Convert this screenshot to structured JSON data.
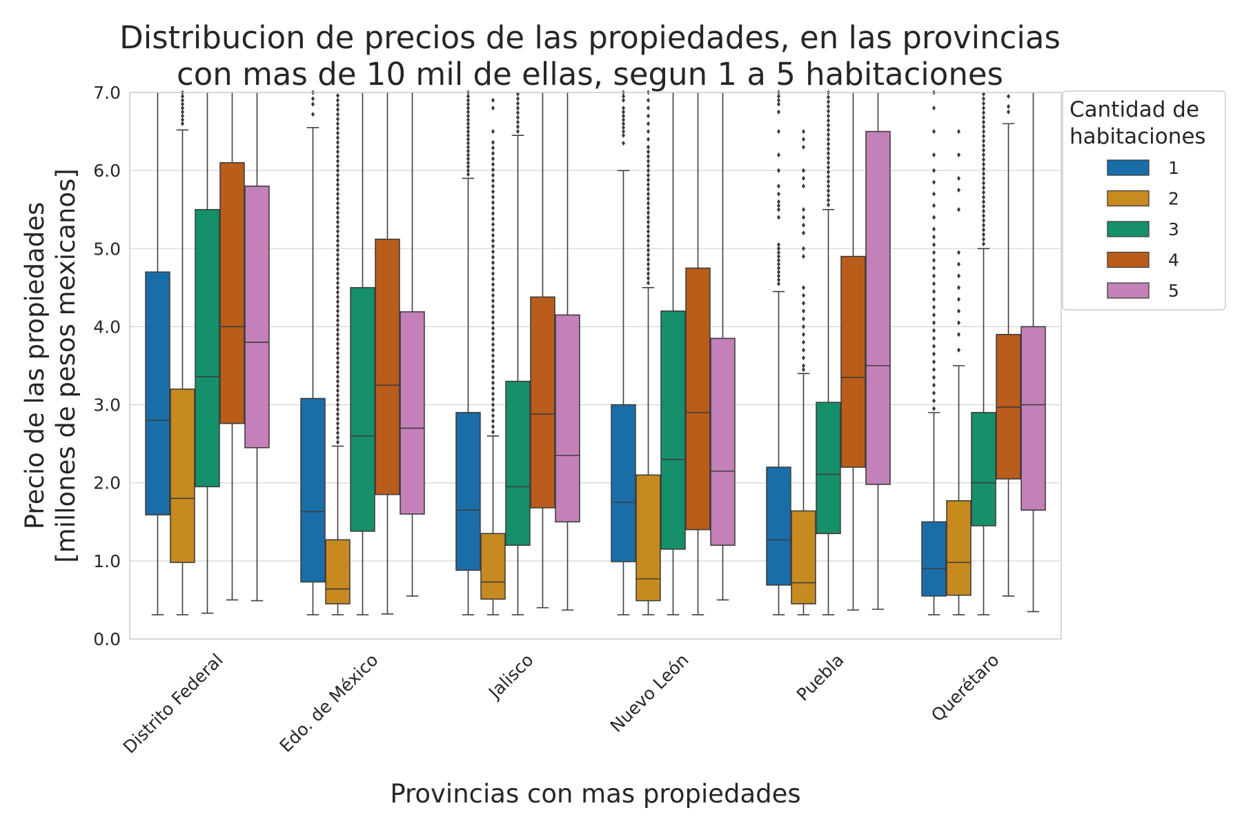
{
  "chart_data": {
    "type": "box",
    "title_lines": [
      "Distribucion de precios de las propiedades, en las provincias",
      "con mas de 10 mil de ellas, segun 1 a 5 habitaciones"
    ],
    "xlabel": "Provincias con mas propiedades",
    "ylabel_lines": [
      "Precio de las propiedades",
      "[millones de pesos mexicanos]"
    ],
    "ylim": [
      0,
      7
    ],
    "yticks": [
      "0.0",
      "1.0",
      "2.0",
      "3.0",
      "4.0",
      "5.0",
      "6.0",
      "7.0"
    ],
    "grid": true,
    "legend": {
      "title_lines": [
        "Cantidad de",
        "habitaciones"
      ],
      "position": "outside-top-right",
      "entries": [
        "1",
        "2",
        "3",
        "4",
        "5"
      ]
    },
    "categories": [
      "Distrito Federal",
      "Edo. de México",
      "Jalisco",
      "Nuevo León",
      "Puebla",
      "Querétaro"
    ],
    "series": [
      {
        "name": "1",
        "color": "#1a6ea8",
        "boxes": [
          {
            "whislo": 0.31,
            "q1": 1.59,
            "med": 2.8,
            "q3": 4.7,
            "whishi": 7.0,
            "fliers": []
          },
          {
            "whislo": 0.31,
            "q1": 0.73,
            "med": 1.63,
            "q3": 3.08,
            "whishi": 6.55,
            "fliers": [
              6.72,
              6.85,
              6.92,
              7.0
            ]
          },
          {
            "whislo": 0.31,
            "q1": 0.88,
            "med": 1.65,
            "q3": 2.9,
            "whishi": 5.9,
            "fliers": [
              5.95,
              6.0,
              6.05,
              6.1,
              6.15,
              6.2,
              6.25,
              6.3,
              6.35,
              6.4,
              6.45,
              6.5,
              6.55,
              6.6,
              6.65,
              6.7,
              6.75,
              6.8,
              6.85,
              6.9,
              6.95,
              7.0
            ]
          },
          {
            "whislo": 0.31,
            "q1": 0.99,
            "med": 1.75,
            "q3": 3.0,
            "whishi": 6.0,
            "fliers": [
              6.35,
              6.45,
              6.5,
              6.55,
              6.6,
              6.65,
              6.7,
              6.75,
              6.8,
              6.9,
              6.95,
              7.0
            ]
          },
          {
            "whislo": 0.31,
            "q1": 0.69,
            "med": 1.27,
            "q3": 2.2,
            "whishi": 4.45,
            "fliers": [
              4.55,
              4.6,
              4.65,
              4.7,
              4.75,
              4.8,
              4.85,
              4.9,
              4.95,
              5.0,
              5.05,
              5.4,
              5.5,
              5.55,
              5.6,
              5.7,
              5.8,
              6.0,
              6.2,
              6.5,
              6.75,
              6.85,
              6.9,
              6.95,
              7.0
            ]
          },
          {
            "whislo": 0.31,
            "q1": 0.55,
            "med": 0.9,
            "q3": 1.5,
            "whishi": 2.9,
            "fliers": [
              2.95,
              3.05,
              3.15,
              3.25,
              3.35,
              3.45,
              3.55,
              3.65,
              3.75,
              3.85,
              3.95,
              4.05,
              4.15,
              4.25,
              4.35,
              4.45,
              4.55,
              4.65,
              4.75,
              4.85,
              4.95,
              5.05,
              5.15,
              5.25,
              5.4,
              5.55,
              5.7,
              5.85,
              6.0,
              6.2,
              6.5,
              6.8,
              7.0
            ]
          }
        ]
      },
      {
        "name": "2",
        "color": "#c68a1f",
        "boxes": [
          {
            "whislo": 0.31,
            "q1": 0.98,
            "med": 1.8,
            "q3": 3.2,
            "whishi": 6.52,
            "fliers": [
              6.6,
              6.65,
              6.7,
              6.75,
              6.8,
              6.85,
              6.9,
              6.95,
              7.0
            ]
          },
          {
            "whislo": 0.31,
            "q1": 0.45,
            "med": 0.64,
            "q3": 1.27,
            "whishi": 2.47,
            "fliers": [
              2.52,
              2.58,
              2.64,
              2.7,
              2.76,
              2.82,
              2.88,
              2.94,
              3.0,
              3.06,
              3.12,
              3.18,
              3.24,
              3.3,
              3.36,
              3.42,
              3.48,
              3.54,
              3.6,
              3.66,
              3.72,
              3.78,
              3.84,
              3.9,
              3.96,
              4.02,
              4.08,
              4.14,
              4.2,
              4.26,
              4.32,
              4.38,
              4.44,
              4.5,
              4.56,
              4.62,
              4.68,
              4.74,
              4.8,
              4.86,
              4.92,
              4.98,
              5.04,
              5.1,
              5.16,
              5.22,
              5.28,
              5.34,
              5.4,
              5.46,
              5.52,
              5.58,
              5.64,
              5.7,
              5.76,
              5.82,
              5.88,
              5.94,
              6.0,
              6.06,
              6.12,
              6.18,
              6.24,
              6.3,
              6.36,
              6.42,
              6.48,
              6.54,
              6.6,
              6.66,
              6.72,
              6.78,
              6.84,
              6.9,
              6.96
            ]
          },
          {
            "whislo": 0.31,
            "q1": 0.51,
            "med": 0.73,
            "q3": 1.35,
            "whishi": 2.6,
            "fliers": [
              2.65,
              2.72,
              2.79,
              2.86,
              2.93,
              3.0,
              3.07,
              3.14,
              3.21,
              3.28,
              3.35,
              3.42,
              3.49,
              3.56,
              3.63,
              3.7,
              3.77,
              3.84,
              3.91,
              3.98,
              4.05,
              4.12,
              4.19,
              4.26,
              4.33,
              4.4,
              4.47,
              4.54,
              4.61,
              4.68,
              4.75,
              4.82,
              4.89,
              4.96,
              5.03,
              5.1,
              5.17,
              5.24,
              5.31,
              5.38,
              5.45,
              5.52,
              5.59,
              5.66,
              5.73,
              5.8,
              5.87,
              5.94,
              6.01,
              6.08,
              6.15,
              6.22,
              6.29,
              6.36,
              6.5,
              6.8,
              6.9
            ]
          },
          {
            "whislo": 0.31,
            "q1": 0.49,
            "med": 0.77,
            "q3": 2.1,
            "whishi": 4.5,
            "fliers": [
              4.56,
              4.62,
              4.68,
              4.74,
              4.8,
              4.86,
              4.92,
              4.98,
              5.04,
              5.1,
              5.16,
              5.22,
              5.28,
              5.34,
              5.4,
              5.46,
              5.52,
              5.58,
              5.64,
              5.7,
              5.76,
              5.82,
              5.88,
              5.94,
              6.0,
              6.06,
              6.12,
              6.18,
              6.24,
              6.3,
              6.4,
              6.5,
              6.6,
              6.7,
              6.8,
              6.9,
              7.0
            ]
          },
          {
            "whislo": 0.31,
            "q1": 0.45,
            "med": 0.72,
            "q3": 1.64,
            "whishi": 3.4,
            "fliers": [
              3.45,
              3.5,
              3.6,
              3.7,
              3.8,
              3.9,
              4.0,
              4.1,
              4.2,
              4.3,
              4.4,
              4.5,
              4.9,
              5.0,
              5.2,
              5.3,
              5.4,
              5.5,
              5.8,
              5.9,
              6.0,
              6.3,
              6.4,
              6.5
            ]
          },
          {
            "whislo": 0.31,
            "q1": 0.56,
            "med": 0.98,
            "q3": 1.77,
            "whishi": 3.5,
            "fliers": [
              3.7,
              3.9,
              4.05,
              4.2,
              4.35,
              4.5,
              4.65,
              4.8,
              4.95,
              5.5,
              5.75,
              5.9,
              6.2,
              6.5
            ]
          }
        ]
      },
      {
        "name": "3",
        "color": "#16906a",
        "boxes": [
          {
            "whislo": 0.33,
            "q1": 1.95,
            "med": 3.36,
            "q3": 5.5,
            "whishi": 7.0,
            "fliers": []
          },
          {
            "whislo": 0.31,
            "q1": 1.38,
            "med": 2.6,
            "q3": 4.5,
            "whishi": 7.0,
            "fliers": []
          },
          {
            "whislo": 0.31,
            "q1": 1.2,
            "med": 1.95,
            "q3": 3.3,
            "whishi": 6.45,
            "fliers": [
              6.5,
              6.56,
              6.62,
              6.68,
              6.74,
              6.8,
              6.86,
              6.92,
              6.98
            ]
          },
          {
            "whislo": 0.31,
            "q1": 1.15,
            "med": 2.3,
            "q3": 4.2,
            "whishi": 7.0,
            "fliers": []
          },
          {
            "whislo": 0.31,
            "q1": 1.35,
            "med": 2.11,
            "q3": 3.03,
            "whishi": 5.5,
            "fliers": [
              5.56,
              5.62,
              5.68,
              5.74,
              5.8,
              5.86,
              5.92,
              5.98,
              6.04,
              6.1,
              6.16,
              6.22,
              6.28,
              6.34,
              6.4,
              6.46,
              6.52,
              6.58,
              6.64,
              6.7,
              6.76,
              6.82,
              6.88,
              6.94,
              7.0
            ]
          },
          {
            "whislo": 0.31,
            "q1": 1.45,
            "med": 2.0,
            "q3": 2.9,
            "whishi": 5.0,
            "fliers": [
              5.06,
              5.12,
              5.18,
              5.24,
              5.3,
              5.36,
              5.42,
              5.48,
              5.54,
              5.6,
              5.66,
              5.72,
              5.78,
              5.84,
              5.9,
              5.96,
              6.02,
              6.08,
              6.14,
              6.2,
              6.26,
              6.32,
              6.38,
              6.44,
              6.5,
              6.56,
              6.62,
              6.68,
              6.74,
              6.8,
              6.86,
              6.92,
              6.98
            ]
          }
        ]
      },
      {
        "name": "4",
        "color": "#ba5c1a",
        "boxes": [
          {
            "whislo": 0.5,
            "q1": 2.76,
            "med": 4.0,
            "q3": 6.1,
            "whishi": 7.0,
            "fliers": []
          },
          {
            "whislo": 0.32,
            "q1": 1.85,
            "med": 3.25,
            "q3": 5.12,
            "whishi": 7.0,
            "fliers": []
          },
          {
            "whislo": 0.4,
            "q1": 1.68,
            "med": 2.88,
            "q3": 4.38,
            "whishi": 7.0,
            "fliers": []
          },
          {
            "whislo": 0.31,
            "q1": 1.4,
            "med": 2.9,
            "q3": 4.75,
            "whishi": 7.0,
            "fliers": []
          },
          {
            "whislo": 0.37,
            "q1": 2.2,
            "med": 3.35,
            "q3": 4.9,
            "whishi": 7.0,
            "fliers": []
          },
          {
            "whislo": 0.55,
            "q1": 2.05,
            "med": 2.97,
            "q3": 3.9,
            "whishi": 6.6,
            "fliers": [
              6.75,
              6.82,
              6.95
            ]
          }
        ]
      },
      {
        "name": "5",
        "color": "#c480b8",
        "boxes": [
          {
            "whislo": 0.49,
            "q1": 2.45,
            "med": 3.8,
            "q3": 5.8,
            "whishi": 7.0,
            "fliers": []
          },
          {
            "whislo": 0.55,
            "q1": 1.6,
            "med": 2.7,
            "q3": 4.19,
            "whishi": 7.0,
            "fliers": []
          },
          {
            "whislo": 0.37,
            "q1": 1.5,
            "med": 2.35,
            "q3": 4.15,
            "whishi": 7.0,
            "fliers": []
          },
          {
            "whislo": 0.5,
            "q1": 1.2,
            "med": 2.15,
            "q3": 3.85,
            "whishi": 7.0,
            "fliers": []
          },
          {
            "whislo": 0.38,
            "q1": 1.98,
            "med": 3.5,
            "q3": 6.5,
            "whishi": 7.0,
            "fliers": []
          },
          {
            "whislo": 0.35,
            "q1": 1.65,
            "med": 3.0,
            "q3": 4.0,
            "whishi": 7.0,
            "fliers": []
          }
        ]
      }
    ]
  }
}
